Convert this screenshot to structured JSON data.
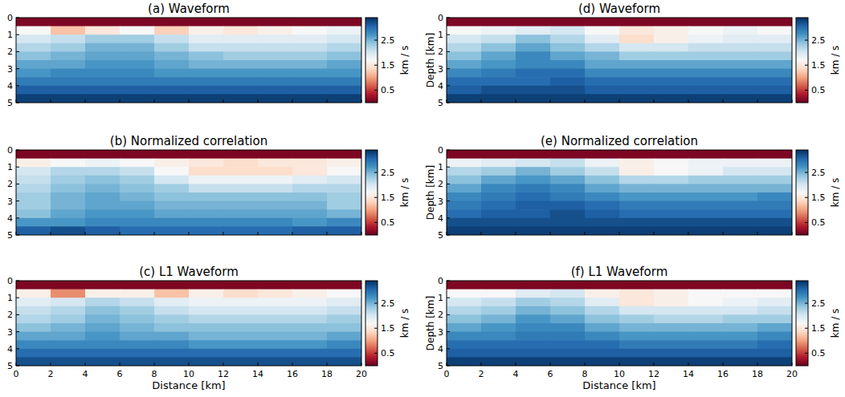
{
  "chart_data": [
    {
      "type": "heatmap",
      "title": "(a) Waveform",
      "xlim": [
        0,
        20
      ],
      "ylim": [
        0,
        5
      ],
      "xticks": [
        0,
        2,
        4,
        6,
        8,
        10,
        12,
        14,
        16,
        18,
        20
      ],
      "yticks": [
        0,
        1,
        2,
        3,
        4,
        5
      ],
      "tick_labels": "y",
      "x": [
        1,
        3,
        5,
        7,
        9,
        11,
        13,
        15,
        17,
        19
      ],
      "y": [
        0.25,
        0.75,
        1.25,
        1.75,
        2.25,
        2.75,
        3.25,
        3.75,
        4.25,
        4.75
      ],
      "values": [
        [
          0.1,
          0.1,
          0.1,
          0.1,
          0.1,
          0.1,
          0.1,
          0.1,
          0.1,
          0.1
        ],
        [
          1.7,
          1.2,
          1.5,
          1.7,
          1.3,
          1.6,
          1.5,
          1.6,
          1.7,
          1.8
        ],
        [
          2.0,
          2.1,
          2.3,
          2.3,
          2.1,
          1.9,
          1.9,
          1.9,
          1.9,
          2.0
        ],
        [
          2.2,
          2.3,
          2.5,
          2.5,
          2.3,
          2.1,
          2.1,
          2.1,
          2.1,
          2.2
        ],
        [
          2.4,
          2.5,
          2.6,
          2.6,
          2.5,
          2.4,
          2.3,
          2.3,
          2.3,
          2.4
        ],
        [
          2.6,
          2.6,
          2.7,
          2.7,
          2.6,
          2.5,
          2.5,
          2.5,
          2.5,
          2.6
        ],
        [
          2.7,
          2.8,
          2.8,
          2.8,
          2.7,
          2.7,
          2.7,
          2.7,
          2.7,
          2.7
        ],
        [
          2.9,
          2.9,
          2.9,
          2.9,
          2.9,
          2.9,
          2.9,
          2.9,
          2.9,
          2.9
        ],
        [
          3.1,
          3.1,
          3.1,
          3.1,
          3.1,
          3.1,
          3.1,
          3.1,
          3.1,
          3.1
        ],
        [
          3.3,
          3.3,
          3.3,
          3.3,
          3.3,
          3.3,
          3.3,
          3.3,
          3.3,
          3.3
        ]
      ],
      "colorbar": {
        "range": [
          0,
          3.4
        ],
        "ticks": [
          0.5,
          1.5,
          2.5
        ],
        "label": "km / s"
      }
    },
    {
      "type": "heatmap",
      "title": "(b) Normalized correlation",
      "xlim": [
        0,
        20
      ],
      "ylim": [
        0,
        5
      ],
      "xticks": [
        0,
        2,
        4,
        6,
        8,
        10,
        12,
        14,
        16,
        18,
        20
      ],
      "yticks": [
        0,
        1,
        2,
        3,
        4,
        5
      ],
      "tick_labels": "y",
      "x": [
        1,
        3,
        5,
        7,
        9,
        11,
        13,
        15,
        17,
        19
      ],
      "y": [
        0.25,
        0.75,
        1.25,
        1.75,
        2.25,
        2.75,
        3.25,
        3.75,
        4.25,
        4.75
      ],
      "values": [
        [
          0.1,
          0.1,
          0.1,
          0.1,
          0.1,
          0.1,
          0.1,
          0.1,
          0.1,
          0.1
        ],
        [
          1.6,
          1.7,
          1.8,
          1.7,
          1.6,
          1.5,
          1.4,
          1.5,
          1.5,
          1.6
        ],
        [
          2.0,
          2.2,
          2.2,
          2.1,
          1.7,
          1.4,
          1.4,
          1.4,
          1.5,
          1.7
        ],
        [
          2.1,
          2.3,
          2.4,
          2.3,
          2.0,
          1.8,
          1.8,
          1.8,
          1.9,
          2.0
        ],
        [
          2.2,
          2.4,
          2.5,
          2.4,
          2.3,
          2.1,
          2.1,
          2.1,
          2.2,
          2.2
        ],
        [
          2.3,
          2.5,
          2.6,
          2.5,
          2.4,
          2.4,
          2.4,
          2.4,
          2.4,
          2.3
        ],
        [
          2.3,
          2.5,
          2.6,
          2.6,
          2.5,
          2.5,
          2.5,
          2.5,
          2.5,
          2.3
        ],
        [
          2.4,
          2.6,
          2.7,
          2.7,
          2.6,
          2.6,
          2.6,
          2.6,
          2.6,
          2.5
        ],
        [
          2.7,
          2.7,
          2.8,
          2.8,
          2.8,
          2.8,
          2.8,
          2.8,
          2.7,
          2.8
        ],
        [
          3.1,
          3.2,
          3.1,
          3.0,
          3.0,
          3.0,
          3.0,
          3.0,
          3.1,
          3.1
        ]
      ],
      "colorbar": {
        "range": [
          0,
          3.4
        ],
        "ticks": [
          0.5,
          1.5,
          2.5
        ],
        "label": "km / s"
      }
    },
    {
      "type": "heatmap",
      "title": "(c) L1 Waveform",
      "xlim": [
        0,
        20
      ],
      "ylim": [
        0,
        5
      ],
      "xticks": [
        0,
        2,
        4,
        6,
        8,
        10,
        12,
        14,
        16,
        18,
        20
      ],
      "yticks": [
        0,
        1,
        2,
        3,
        4,
        5
      ],
      "tick_labels": true,
      "x_label": "Distance [km]",
      "x": [
        1,
        3,
        5,
        7,
        9,
        11,
        13,
        15,
        17,
        19
      ],
      "y": [
        0.25,
        0.75,
        1.25,
        1.75,
        2.25,
        2.75,
        3.25,
        3.75,
        4.25,
        4.75
      ],
      "values": [
        [
          0.1,
          0.1,
          0.1,
          0.1,
          0.1,
          0.1,
          0.1,
          0.1,
          0.1,
          0.1
        ],
        [
          1.6,
          0.9,
          1.6,
          1.6,
          1.2,
          1.6,
          1.4,
          1.5,
          1.6,
          1.7
        ],
        [
          1.9,
          2.0,
          2.2,
          2.1,
          1.9,
          1.8,
          1.8,
          1.8,
          1.8,
          1.9
        ],
        [
          2.1,
          2.2,
          2.4,
          2.3,
          2.1,
          2.0,
          2.0,
          2.0,
          2.0,
          2.1
        ],
        [
          2.2,
          2.3,
          2.5,
          2.4,
          2.3,
          2.2,
          2.2,
          2.2,
          2.2,
          2.3
        ],
        [
          2.4,
          2.5,
          2.6,
          2.5,
          2.4,
          2.4,
          2.4,
          2.4,
          2.4,
          2.4
        ],
        [
          2.6,
          2.6,
          2.7,
          2.6,
          2.6,
          2.5,
          2.5,
          2.5,
          2.5,
          2.6
        ],
        [
          2.8,
          2.8,
          2.8,
          2.8,
          2.8,
          2.7,
          2.7,
          2.7,
          2.7,
          2.8
        ],
        [
          3.0,
          3.0,
          3.0,
          3.0,
          3.0,
          3.0,
          3.0,
          3.0,
          3.0,
          3.0
        ],
        [
          3.2,
          3.2,
          3.2,
          3.2,
          3.2,
          3.2,
          3.2,
          3.2,
          3.2,
          3.2
        ]
      ],
      "colorbar": {
        "range": [
          0,
          3.4
        ],
        "ticks": [
          0.5,
          1.5,
          2.5
        ],
        "label": "km / s"
      }
    },
    {
      "type": "heatmap",
      "title": "(d) Waveform",
      "xlim": [
        0,
        20
      ],
      "ylim": [
        0,
        5
      ],
      "xticks": [
        0,
        2,
        4,
        6,
        8,
        10,
        12,
        14,
        16,
        18,
        20
      ],
      "yticks": [
        0,
        1,
        2,
        3,
        4,
        5
      ],
      "tick_labels": "y",
      "y_label": "Depth [km]",
      "x": [
        1,
        3,
        5,
        7,
        9,
        11,
        13,
        15,
        17,
        19
      ],
      "y": [
        0.25,
        0.75,
        1.25,
        1.75,
        2.25,
        2.75,
        3.25,
        3.75,
        4.25,
        4.75
      ],
      "values": [
        [
          0.1,
          0.1,
          0.1,
          0.1,
          0.1,
          0.1,
          0.1,
          0.1,
          0.1,
          0.1
        ],
        [
          1.7,
          1.8,
          1.9,
          2.0,
          1.7,
          1.5,
          1.6,
          1.7,
          1.8,
          1.7
        ],
        [
          2.0,
          2.1,
          2.4,
          2.2,
          1.9,
          1.4,
          1.6,
          1.8,
          1.9,
          1.9
        ],
        [
          2.2,
          2.4,
          2.6,
          2.4,
          2.2,
          2.0,
          2.0,
          2.1,
          2.1,
          2.1
        ],
        [
          2.4,
          2.6,
          2.8,
          2.6,
          2.5,
          2.3,
          2.3,
          2.3,
          2.3,
          2.3
        ],
        [
          2.6,
          2.7,
          2.8,
          2.8,
          2.6,
          2.6,
          2.6,
          2.6,
          2.6,
          2.6
        ],
        [
          2.8,
          2.9,
          3.0,
          3.0,
          2.8,
          2.8,
          2.8,
          2.8,
          2.8,
          2.8
        ],
        [
          3.0,
          3.0,
          3.0,
          3.1,
          3.0,
          3.0,
          3.0,
          3.0,
          3.0,
          3.0
        ],
        [
          3.1,
          3.2,
          3.2,
          3.2,
          3.1,
          3.1,
          3.1,
          3.1,
          3.1,
          3.1
        ],
        [
          3.3,
          3.3,
          3.3,
          3.3,
          3.3,
          3.3,
          3.3,
          3.3,
          3.3,
          3.3
        ]
      ],
      "colorbar": {
        "range": [
          0,
          3.4
        ],
        "ticks": [
          0.5,
          1.5,
          2.5
        ],
        "label": "km / s"
      }
    },
    {
      "type": "heatmap",
      "title": "(e) Normalized correlation",
      "xlim": [
        0,
        20
      ],
      "ylim": [
        0,
        5
      ],
      "xticks": [
        0,
        2,
        4,
        6,
        8,
        10,
        12,
        14,
        16,
        18,
        20
      ],
      "yticks": [
        0,
        1,
        2,
        3,
        4,
        5
      ],
      "tick_labels": "y",
      "y_label": "Depth [km]",
      "x": [
        1,
        3,
        5,
        7,
        9,
        11,
        13,
        15,
        17,
        19
      ],
      "y": [
        0.25,
        0.75,
        1.25,
        1.75,
        2.25,
        2.75,
        3.25,
        3.75,
        4.25,
        4.75
      ],
      "values": [
        [
          0.1,
          0.1,
          0.1,
          0.1,
          0.1,
          0.1,
          0.1,
          0.1,
          0.1,
          0.1
        ],
        [
          1.8,
          1.9,
          2.0,
          2.1,
          1.8,
          1.6,
          1.7,
          1.8,
          1.8,
          1.8
        ],
        [
          2.2,
          2.3,
          2.5,
          2.3,
          2.1,
          1.6,
          1.7,
          1.8,
          2.0,
          2.0
        ],
        [
          2.4,
          2.6,
          2.7,
          2.6,
          2.4,
          2.2,
          2.2,
          2.3,
          2.3,
          2.3
        ],
        [
          2.6,
          2.8,
          2.9,
          2.8,
          2.6,
          2.5,
          2.5,
          2.5,
          2.5,
          2.5
        ],
        [
          2.8,
          2.9,
          3.0,
          2.9,
          2.8,
          2.7,
          2.7,
          2.7,
          2.7,
          2.8
        ],
        [
          2.9,
          3.0,
          3.1,
          3.1,
          3.0,
          2.9,
          2.9,
          2.9,
          2.9,
          2.9
        ],
        [
          3.0,
          3.1,
          3.1,
          3.2,
          3.1,
          3.0,
          3.0,
          3.0,
          3.0,
          3.0
        ],
        [
          3.2,
          3.2,
          3.2,
          3.2,
          3.2,
          3.2,
          3.2,
          3.2,
          3.2,
          3.2
        ],
        [
          3.3,
          3.3,
          3.3,
          3.3,
          3.3,
          3.3,
          3.3,
          3.3,
          3.3,
          3.3
        ]
      ],
      "colorbar": {
        "range": [
          0,
          3.4
        ],
        "ticks": [
          0.5,
          1.5,
          2.5
        ],
        "label": "km / s"
      }
    },
    {
      "type": "heatmap",
      "title": "(f) L1 Waveform",
      "xlim": [
        0,
        20
      ],
      "ylim": [
        0,
        5
      ],
      "xticks": [
        0,
        2,
        4,
        6,
        8,
        10,
        12,
        14,
        16,
        18,
        20
      ],
      "yticks": [
        0,
        1,
        2,
        3,
        4,
        5
      ],
      "tick_labels": true,
      "x_label": "Distance [km]",
      "y_label": "Depth [km]",
      "x": [
        1,
        3,
        5,
        7,
        9,
        11,
        13,
        15,
        17,
        19
      ],
      "y": [
        0.25,
        0.75,
        1.25,
        1.75,
        2.25,
        2.75,
        3.25,
        3.75,
        4.25,
        4.75
      ],
      "values": [
        [
          0.1,
          0.1,
          0.1,
          0.1,
          0.1,
          0.1,
          0.1,
          0.1,
          0.1,
          0.1
        ],
        [
          1.7,
          1.7,
          1.9,
          2.0,
          1.6,
          1.5,
          1.6,
          1.7,
          1.7,
          1.7
        ],
        [
          2.0,
          2.1,
          2.3,
          2.2,
          1.9,
          1.5,
          1.6,
          1.7,
          1.8,
          1.9
        ],
        [
          2.2,
          2.3,
          2.5,
          2.4,
          2.2,
          2.0,
          2.0,
          2.0,
          2.0,
          2.1
        ],
        [
          2.4,
          2.5,
          2.7,
          2.6,
          2.4,
          2.3,
          2.2,
          2.2,
          2.3,
          2.3
        ],
        [
          2.6,
          2.7,
          2.8,
          2.8,
          2.6,
          2.5,
          2.5,
          2.5,
          2.5,
          2.6
        ],
        [
          2.8,
          2.8,
          2.9,
          2.9,
          2.8,
          2.7,
          2.7,
          2.7,
          2.7,
          2.8
        ],
        [
          3.0,
          3.0,
          3.0,
          3.0,
          3.0,
          2.9,
          2.9,
          2.9,
          2.9,
          3.0
        ],
        [
          3.1,
          3.1,
          3.1,
          3.1,
          3.1,
          3.1,
          3.1,
          3.1,
          3.1,
          3.1
        ],
        [
          3.3,
          3.3,
          3.3,
          3.3,
          3.3,
          3.3,
          3.3,
          3.3,
          3.3,
          3.3
        ]
      ],
      "colorbar": {
        "range": [
          0,
          3.4
        ],
        "ticks": [
          0.5,
          1.5,
          2.5
        ],
        "label": "km / s"
      }
    }
  ]
}
